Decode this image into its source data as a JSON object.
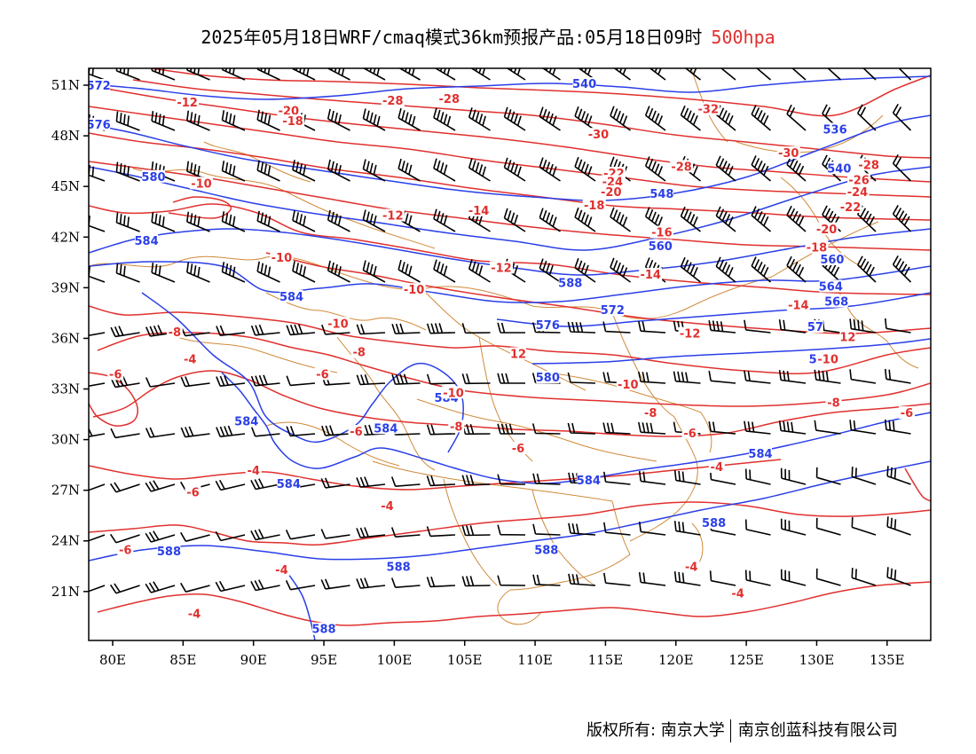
{
  "title": {
    "main": "2025年05月18日WRF/cmaq模式36km预报产品:05月18日09时",
    "level": "500hpa"
  },
  "colors": {
    "geopotential": "#2a3fe8",
    "temperature": "#e0302e",
    "borders": "#d08a3a",
    "wind": "#000000",
    "frame": "#000000"
  },
  "axes": {
    "lat_labels": [
      "51N",
      "48N",
      "45N",
      "42N",
      "39N",
      "36N",
      "33N",
      "30N",
      "27N",
      "24N",
      "21N"
    ],
    "lon_labels": [
      "80E",
      "85E",
      "90E",
      "95E",
      "100E",
      "105E",
      "110E",
      "115E",
      "120E",
      "125E",
      "130E",
      "135E"
    ]
  },
  "map_data": {
    "extent": {
      "lon_min": 78.3,
      "lon_max": 138.1,
      "lat_min": 18.1,
      "lat_max": 52.0
    },
    "lat_ticks": [
      51,
      48,
      45,
      42,
      39,
      36,
      33,
      30,
      27,
      24,
      21
    ],
    "lon_ticks": [
      80,
      85,
      90,
      95,
      100,
      105,
      110,
      115,
      120,
      125,
      130,
      135
    ],
    "geopotential_labels": [
      {
        "text": "572",
        "lon": 79.0,
        "lat": 51.0
      },
      {
        "text": "540",
        "lon": 113.5,
        "lat": 51.1
      },
      {
        "text": "576",
        "lon": 79.0,
        "lat": 48.7
      },
      {
        "text": "536",
        "lon": 131.3,
        "lat": 48.4
      },
      {
        "text": "540",
        "lon": 131.6,
        "lat": 46.1
      },
      {
        "text": "580",
        "lon": 82.9,
        "lat": 45.6
      },
      {
        "text": "548",
        "lon": 119.0,
        "lat": 44.6
      },
      {
        "text": "584",
        "lon": 82.4,
        "lat": 41.8
      },
      {
        "text": "560",
        "lon": 118.9,
        "lat": 41.5
      },
      {
        "text": "560",
        "lon": 131.1,
        "lat": 40.7
      },
      {
        "text": "588",
        "lon": 112.5,
        "lat": 39.3
      },
      {
        "text": "564",
        "lon": 131.0,
        "lat": 39.1
      },
      {
        "text": "584",
        "lon": 92.7,
        "lat": 38.5
      },
      {
        "text": "568",
        "lon": 131.4,
        "lat": 38.2
      },
      {
        "text": "572",
        "lon": 115.5,
        "lat": 37.7
      },
      {
        "text": "576",
        "lon": 110.9,
        "lat": 36.8
      },
      {
        "text": "57",
        "lon": 129.9,
        "lat": 36.7
      },
      {
        "text": "576",
        "lon": 130.3,
        "lat": 34.8
      },
      {
        "text": "580",
        "lon": 110.9,
        "lat": 33.7
      },
      {
        "text": "584",
        "lon": 103.7,
        "lat": 32.5
      },
      {
        "text": "584",
        "lon": 89.5,
        "lat": 31.1
      },
      {
        "text": "584",
        "lon": 99.4,
        "lat": 30.7
      },
      {
        "text": "584",
        "lon": 126.0,
        "lat": 29.2
      },
      {
        "text": "584",
        "lon": 113.8,
        "lat": 27.6
      },
      {
        "text": "584",
        "lon": 92.5,
        "lat": 27.4
      },
      {
        "text": "588",
        "lon": 122.7,
        "lat": 25.1
      },
      {
        "text": "588",
        "lon": 84.0,
        "lat": 23.4
      },
      {
        "text": "588",
        "lon": 110.8,
        "lat": 23.5
      },
      {
        "text": "588",
        "lon": 100.3,
        "lat": 22.5
      },
      {
        "text": "588",
        "lon": 95.0,
        "lat": 18.8
      }
    ],
    "temperature_labels": [
      {
        "text": "-12",
        "lon": 85.3,
        "lat": 50.0
      },
      {
        "text": "-28",
        "lon": 99.9,
        "lat": 50.1
      },
      {
        "text": "-28",
        "lon": 103.9,
        "lat": 50.2
      },
      {
        "text": "-32",
        "lon": 122.3,
        "lat": 49.6
      },
      {
        "text": "-20",
        "lon": 92.5,
        "lat": 49.5
      },
      {
        "text": "-18",
        "lon": 92.8,
        "lat": 48.9
      },
      {
        "text": "-30",
        "lon": 114.5,
        "lat": 48.1
      },
      {
        "text": "-30",
        "lon": 128.0,
        "lat": 47.0
      },
      {
        "text": "-28",
        "lon": 120.4,
        "lat": 46.2
      },
      {
        "text": "-28",
        "lon": 133.7,
        "lat": 46.3
      },
      {
        "text": "-22",
        "lon": 115.6,
        "lat": 45.8
      },
      {
        "text": "-26",
        "lon": 133.0,
        "lat": 45.4
      },
      {
        "text": "-24",
        "lon": 115.5,
        "lat": 45.3
      },
      {
        "text": "-10",
        "lon": 86.3,
        "lat": 45.2
      },
      {
        "text": "-24",
        "lon": 132.9,
        "lat": 44.7
      },
      {
        "text": "-20",
        "lon": 115.4,
        "lat": 44.7
      },
      {
        "text": "-22",
        "lon": 132.4,
        "lat": 43.8
      },
      {
        "text": "-18",
        "lon": 114.2,
        "lat": 43.9
      },
      {
        "text": "-14",
        "lon": 106.0,
        "lat": 43.6
      },
      {
        "text": "-12",
        "lon": 99.9,
        "lat": 43.3
      },
      {
        "text": "-20",
        "lon": 130.7,
        "lat": 42.5
      },
      {
        "text": "-16",
        "lon": 119.0,
        "lat": 42.3
      },
      {
        "text": "-18",
        "lon": 130.0,
        "lat": 41.4
      },
      {
        "text": "-10",
        "lon": 92.0,
        "lat": 40.8
      },
      {
        "text": "-12",
        "lon": 107.6,
        "lat": 40.2
      },
      {
        "text": "-14",
        "lon": 118.2,
        "lat": 39.8
      },
      {
        "text": "-10",
        "lon": 101.4,
        "lat": 38.9
      },
      {
        "text": "-14",
        "lon": 128.7,
        "lat": 38.0
      },
      {
        "text": "-10",
        "lon": 96.0,
        "lat": 36.9
      },
      {
        "text": "-12",
        "lon": 121.0,
        "lat": 36.3
      },
      {
        "text": "-8",
        "lon": 84.4,
        "lat": 36.4
      },
      {
        "text": "12",
        "lon": 132.2,
        "lat": 36.1
      },
      {
        "text": "12",
        "lon": 108.8,
        "lat": 35.1
      },
      {
        "text": "-4",
        "lon": 85.5,
        "lat": 34.8
      },
      {
        "text": "-10",
        "lon": 130.8,
        "lat": 34.8
      },
      {
        "text": "-8",
        "lon": 97.5,
        "lat": 35.2
      },
      {
        "text": "-6",
        "lon": 80.2,
        "lat": 33.9
      },
      {
        "text": "-6",
        "lon": 94.9,
        "lat": 33.9
      },
      {
        "text": "-10",
        "lon": 116.6,
        "lat": 33.3
      },
      {
        "text": "-10",
        "lon": 104.2,
        "lat": 32.8
      },
      {
        "text": "-8",
        "lon": 131.2,
        "lat": 32.2
      },
      {
        "text": "-8",
        "lon": 118.2,
        "lat": 31.6
      },
      {
        "text": "-6",
        "lon": 136.4,
        "lat": 31.6
      },
      {
        "text": "-8",
        "lon": 104.4,
        "lat": 30.8
      },
      {
        "text": "-6",
        "lon": 97.3,
        "lat": 30.5
      },
      {
        "text": "-6",
        "lon": 121.0,
        "lat": 30.4
      },
      {
        "text": "-6",
        "lon": 108.8,
        "lat": 29.5
      },
      {
        "text": "-4",
        "lon": 90.0,
        "lat": 28.2
      },
      {
        "text": "-4",
        "lon": 122.9,
        "lat": 28.4
      },
      {
        "text": "-6",
        "lon": 85.7,
        "lat": 26.9
      },
      {
        "text": "-4",
        "lon": 99.5,
        "lat": 26.1
      },
      {
        "text": "-6",
        "lon": 80.9,
        "lat": 23.5
      },
      {
        "text": "-4",
        "lon": 92.0,
        "lat": 22.3
      },
      {
        "text": "-4",
        "lon": 121.1,
        "lat": 22.5
      },
      {
        "text": "-4",
        "lon": 124.4,
        "lat": 20.9
      },
      {
        "text": "-4",
        "lon": 85.8,
        "lat": 19.7
      }
    ]
  },
  "footer": {
    "owner": "版权所有: 南京大学",
    "company": "南京创蓝科技有限公司"
  }
}
